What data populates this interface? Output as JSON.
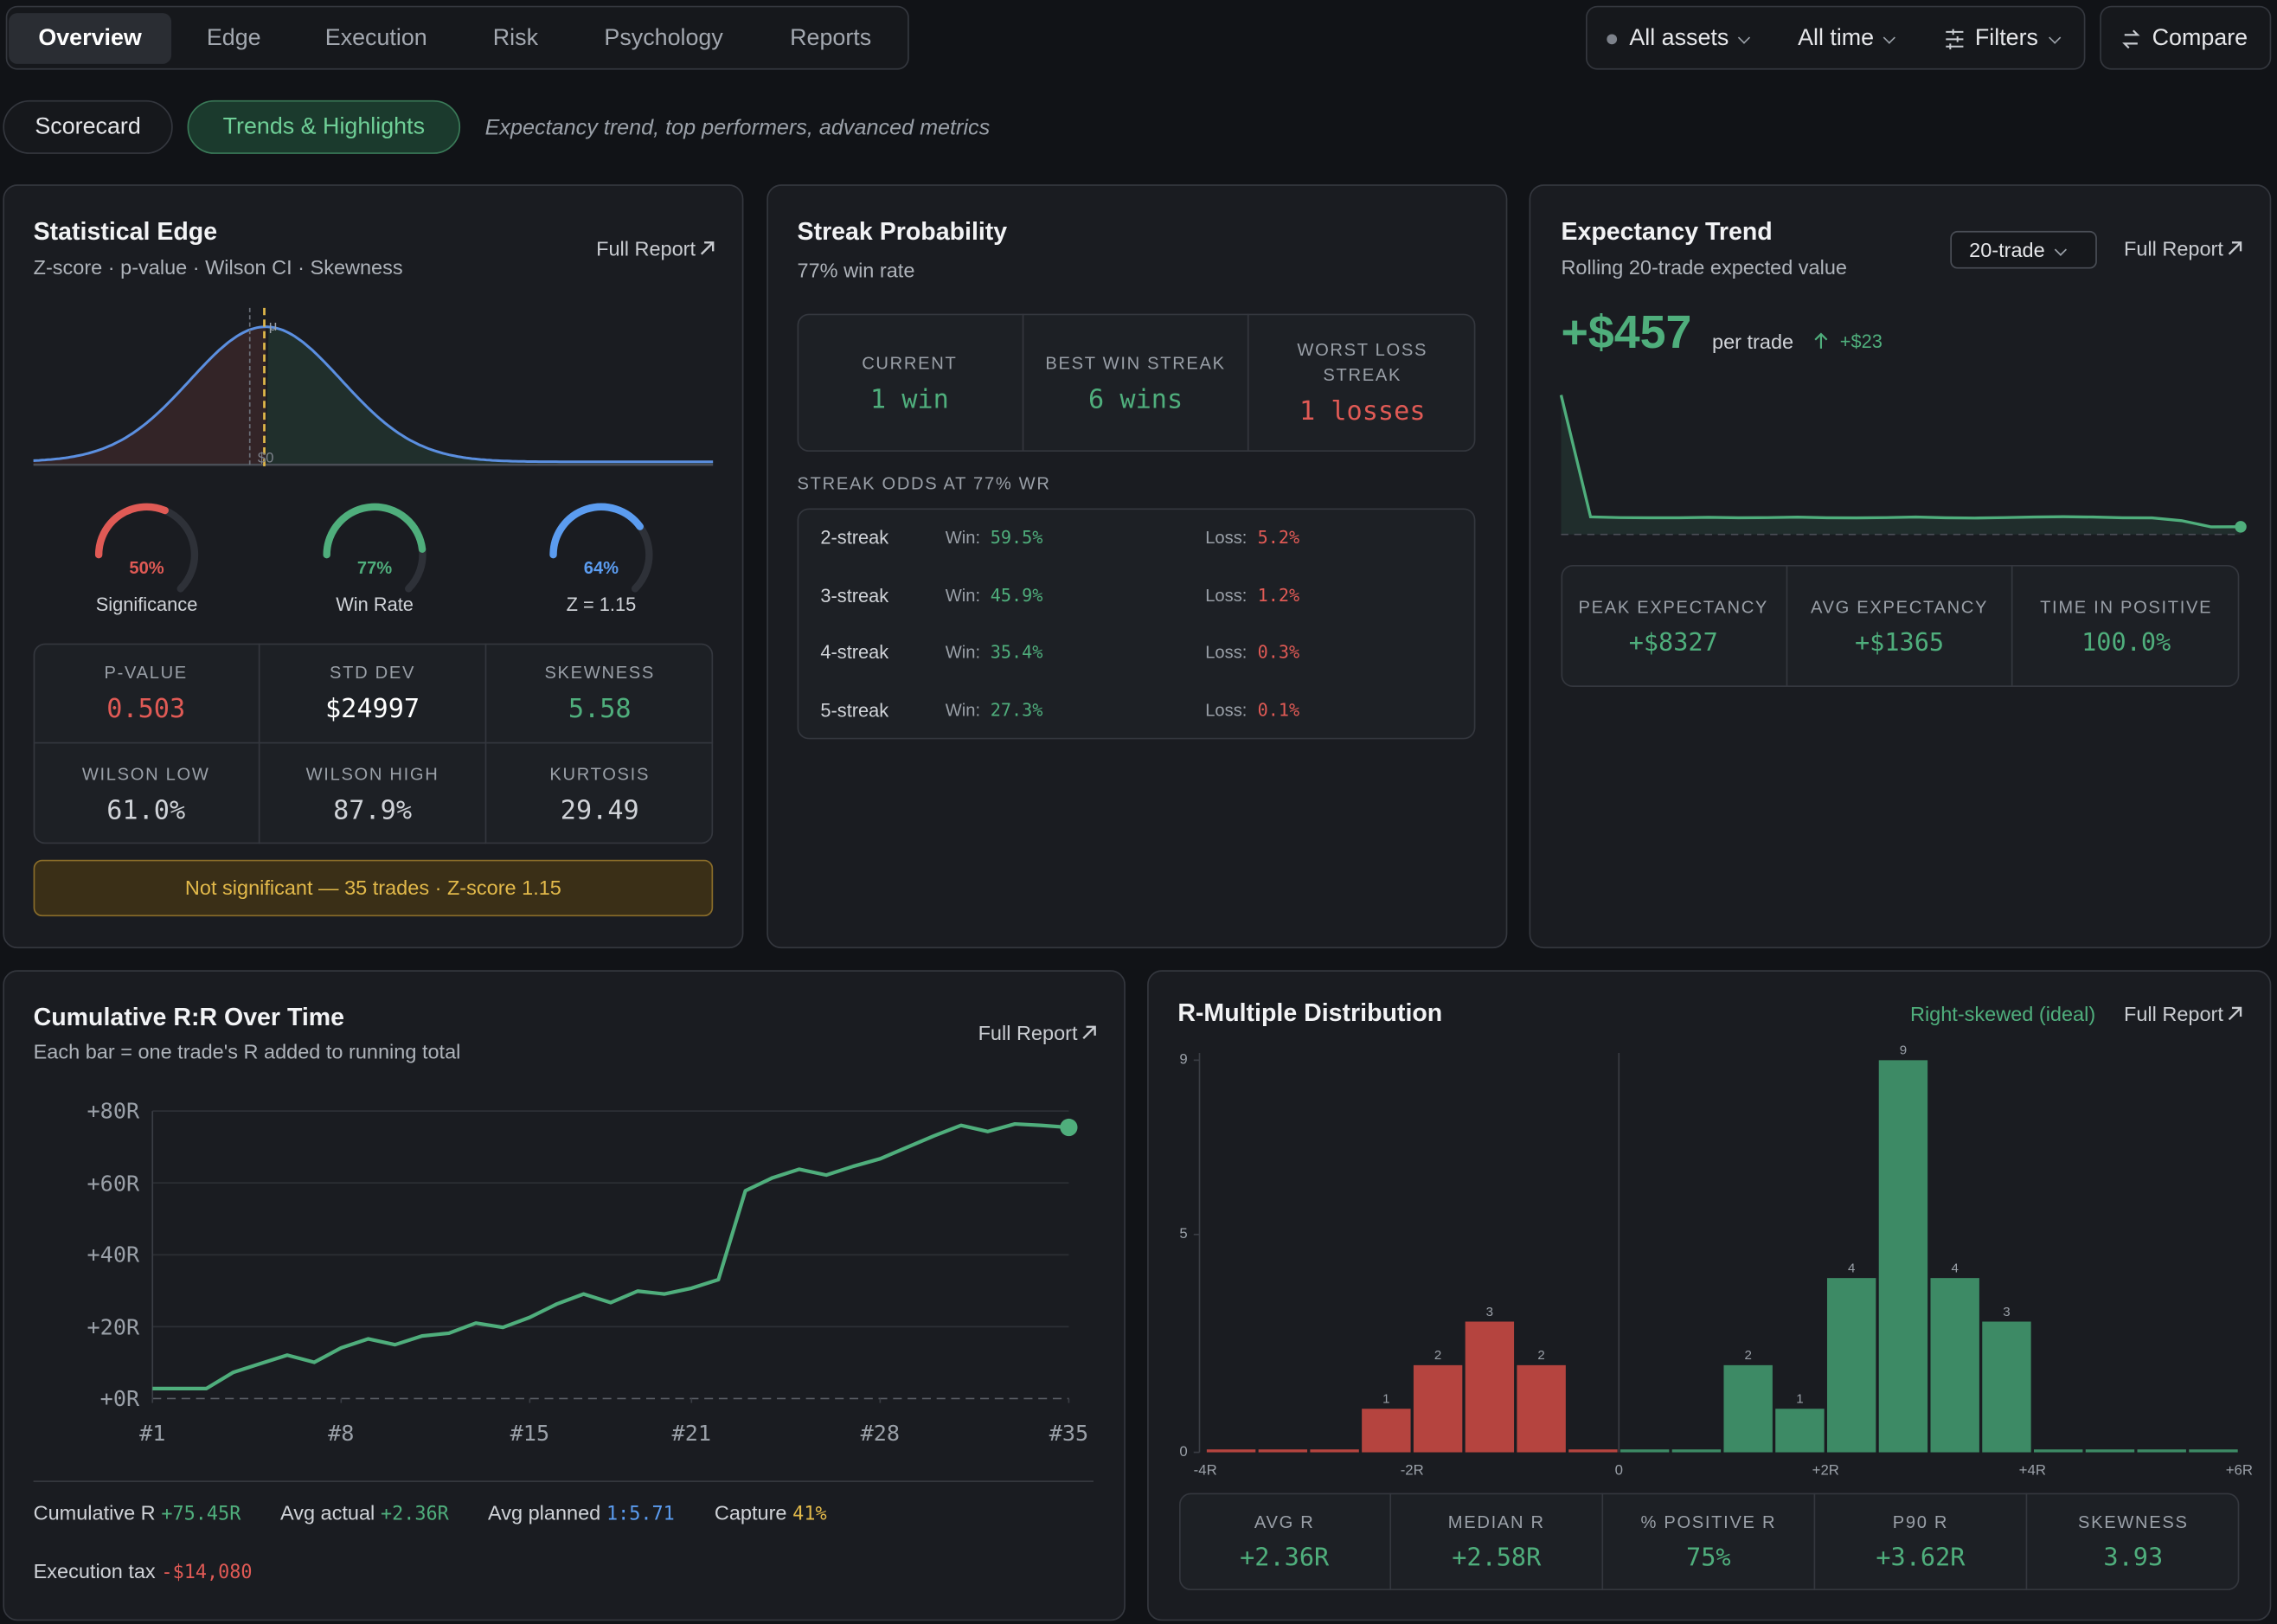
{
  "nav": {
    "tabs": [
      "Overview",
      "Edge",
      "Execution",
      "Risk",
      "Psychology",
      "Reports"
    ],
    "active": 0,
    "filters": [
      "All assets",
      "All time",
      "Filters"
    ],
    "compare": "Compare"
  },
  "subnav": {
    "tabs": [
      "Scorecard",
      "Trends & Highlights"
    ],
    "active": 1,
    "description": "Expectancy trend, top performers, advanced metrics"
  },
  "statistical_edge": {
    "title": "Statistical Edge",
    "subtitle": "Z-score · p-value · Wilson CI · Skewness",
    "link": "Full Report",
    "curve_labels": {
      "mean": "μ",
      "zero": "$0"
    },
    "gauges": [
      {
        "value": 50,
        "label": "50%",
        "caption": "Significance",
        "color": "#e05a55"
      },
      {
        "value": 77,
        "label": "77%",
        "caption": "Win Rate",
        "color": "#4fae7c"
      },
      {
        "value": 64,
        "label": "64%",
        "caption": "Z = 1.15",
        "color": "#5b9cf0"
      }
    ],
    "metrics": [
      {
        "label": "P-VALUE",
        "value": "0.503",
        "color": "#e05a55"
      },
      {
        "label": "STD DEV",
        "value": "$24997",
        "color": "#ffffff"
      },
      {
        "label": "SKEWNESS",
        "value": "5.58",
        "color": "#4fae7c"
      },
      {
        "label": "WILSON LOW",
        "value": "61.0%",
        "color": "#d0d3d8"
      },
      {
        "label": "WILSON HIGH",
        "value": "87.9%",
        "color": "#d0d3d8"
      },
      {
        "label": "KURTOSIS",
        "value": "29.49",
        "color": "#d0d3d8"
      }
    ],
    "note": "Not significant — 35 trades · Z-score 1.15"
  },
  "streak": {
    "title": "Streak Probability",
    "subtitle": "77% win rate",
    "stats": [
      {
        "label": "CURRENT",
        "value": "1 win",
        "color": "#4fae7c"
      },
      {
        "label": "BEST WIN STREAK",
        "value": "6 wins",
        "color": "#4fae7c"
      },
      {
        "label": "WORST LOSS STREAK",
        "value": "1 losses",
        "color": "#e05a55"
      }
    ],
    "odds_title": "STREAK ODDS AT 77% WR",
    "win_label": "Win:",
    "loss_label": "Loss:",
    "odds": [
      {
        "name": "2-streak",
        "win": "59.5%",
        "loss": "5.2%"
      },
      {
        "name": "3-streak",
        "win": "45.9%",
        "loss": "1.2%"
      },
      {
        "name": "4-streak",
        "win": "35.4%",
        "loss": "0.3%"
      },
      {
        "name": "5-streak",
        "win": "27.3%",
        "loss": "0.1%"
      }
    ]
  },
  "expectancy": {
    "title": "Expectancy Trend",
    "subtitle": "Rolling 20-trade expected value",
    "window": "20-trade",
    "link": "Full Report",
    "value": "+$457",
    "unit": "per trade",
    "change": "+$23",
    "chart": {
      "type": "line",
      "color": "#4fae7c",
      "values": [
        8327,
        1050,
        1010,
        1000,
        1000,
        1020,
        1000,
        1010,
        1030,
        1000,
        990,
        1010,
        1040,
        1000,
        980,
        1010,
        1040,
        1060,
        1040,
        1000,
        990,
        820,
        450,
        457
      ]
    },
    "stats": [
      {
        "label": "PEAK EXPECTANCY",
        "value": "+$8327"
      },
      {
        "label": "AVG EXPECTANCY",
        "value": "+$1365"
      },
      {
        "label": "TIME IN POSITIVE",
        "value": "100.0%"
      }
    ]
  },
  "cumulative": {
    "title": "Cumulative R:R Over Time",
    "subtitle": "Each bar = one trade's R added to running total",
    "link": "Full Report",
    "chart": {
      "type": "line",
      "color": "#4fae7c",
      "x": [
        1,
        2,
        3,
        4,
        5,
        6,
        7,
        8,
        9,
        10,
        11,
        12,
        13,
        14,
        15,
        16,
        17,
        18,
        19,
        20,
        21,
        22,
        23,
        24,
        25,
        26,
        27,
        28,
        29,
        30,
        31,
        32,
        33,
        34,
        35
      ],
      "values": [
        2.8,
        2.8,
        2.8,
        7.3,
        9.7,
        12.1,
        10.1,
        14.1,
        16.6,
        15,
        17.4,
        18.2,
        21,
        19.8,
        22.6,
        26.3,
        29.1,
        26.7,
        29.9,
        29.1,
        30.7,
        33.1,
        57.8,
        61.4,
        63.8,
        62.2,
        64.6,
        66.7,
        69.9,
        73.1,
        76,
        74.3,
        76.4,
        76,
        75.45
      ],
      "xlim": [
        1,
        35
      ],
      "xticks": [
        {
          "value": 1,
          "label": "#1"
        },
        {
          "value": 8,
          "label": "#8"
        },
        {
          "value": 15,
          "label": "#15"
        },
        {
          "value": 21,
          "label": "#21"
        },
        {
          "value": 28,
          "label": "#28"
        },
        {
          "value": 35,
          "label": "#35"
        }
      ],
      "ylim": [
        0,
        80
      ],
      "yticks": [
        {
          "value": 0,
          "label": "+0R"
        },
        {
          "value": 20,
          "label": "+20R"
        },
        {
          "value": 40,
          "label": "+40R"
        },
        {
          "value": 60,
          "label": "+60R"
        },
        {
          "value": 80,
          "label": "+80R"
        }
      ],
      "grid": true
    },
    "summary": [
      {
        "label": "Cumulative R",
        "value": "+75.45R",
        "color": "#4fae7c"
      },
      {
        "label": "Avg actual",
        "value": "+2.36R",
        "color": "#4fae7c"
      },
      {
        "label": "Avg planned",
        "value": "1:5.71",
        "color": "#5b9cf0"
      },
      {
        "label": "Capture",
        "value": "41%",
        "color": "#e2b94a"
      },
      {
        "label": "Execution tax",
        "value": "-$14,080",
        "color": "#e05a55"
      }
    ]
  },
  "r_distribution": {
    "title": "R-Multiple Distribution",
    "tag": "Right-skewed (ideal)",
    "link": "Full Report",
    "chart": {
      "type": "histogram",
      "bins": [
        -4,
        -3.5,
        -3,
        -2.5,
        -2,
        -1.5,
        -1,
        -0.5,
        0,
        0.5,
        1,
        1.5,
        2,
        2.5,
        3,
        3.5,
        4,
        4.5,
        5,
        5.5,
        6
      ],
      "values": [
        0,
        0,
        0,
        1,
        2,
        3,
        2,
        0,
        0,
        0,
        2,
        1,
        4,
        9,
        4,
        3,
        0,
        0,
        0,
        0
      ],
      "xlim": [
        -4,
        6
      ],
      "xticks": [
        {
          "value": -4,
          "label": "-4R"
        },
        {
          "value": -2,
          "label": "-2R"
        },
        0,
        {
          "value": 2,
          "label": "+2R"
        },
        {
          "value": 4,
          "label": "+4R"
        },
        {
          "value": 6,
          "label": "+6R"
        }
      ],
      "ylim": [
        0,
        9
      ],
      "yticks": [
        0,
        5,
        9
      ],
      "colors": {
        "negative": "#b5443f",
        "positive": "#3d8a65"
      }
    },
    "stats": [
      {
        "label": "AVG R",
        "value": "+2.36R"
      },
      {
        "label": "MEDIAN R",
        "value": "+2.58R"
      },
      {
        "label": "% POSITIVE R",
        "value": "75%"
      },
      {
        "label": "P90 R",
        "value": "+3.62R"
      },
      {
        "label": "SKEWNESS",
        "value": "3.93"
      }
    ]
  }
}
